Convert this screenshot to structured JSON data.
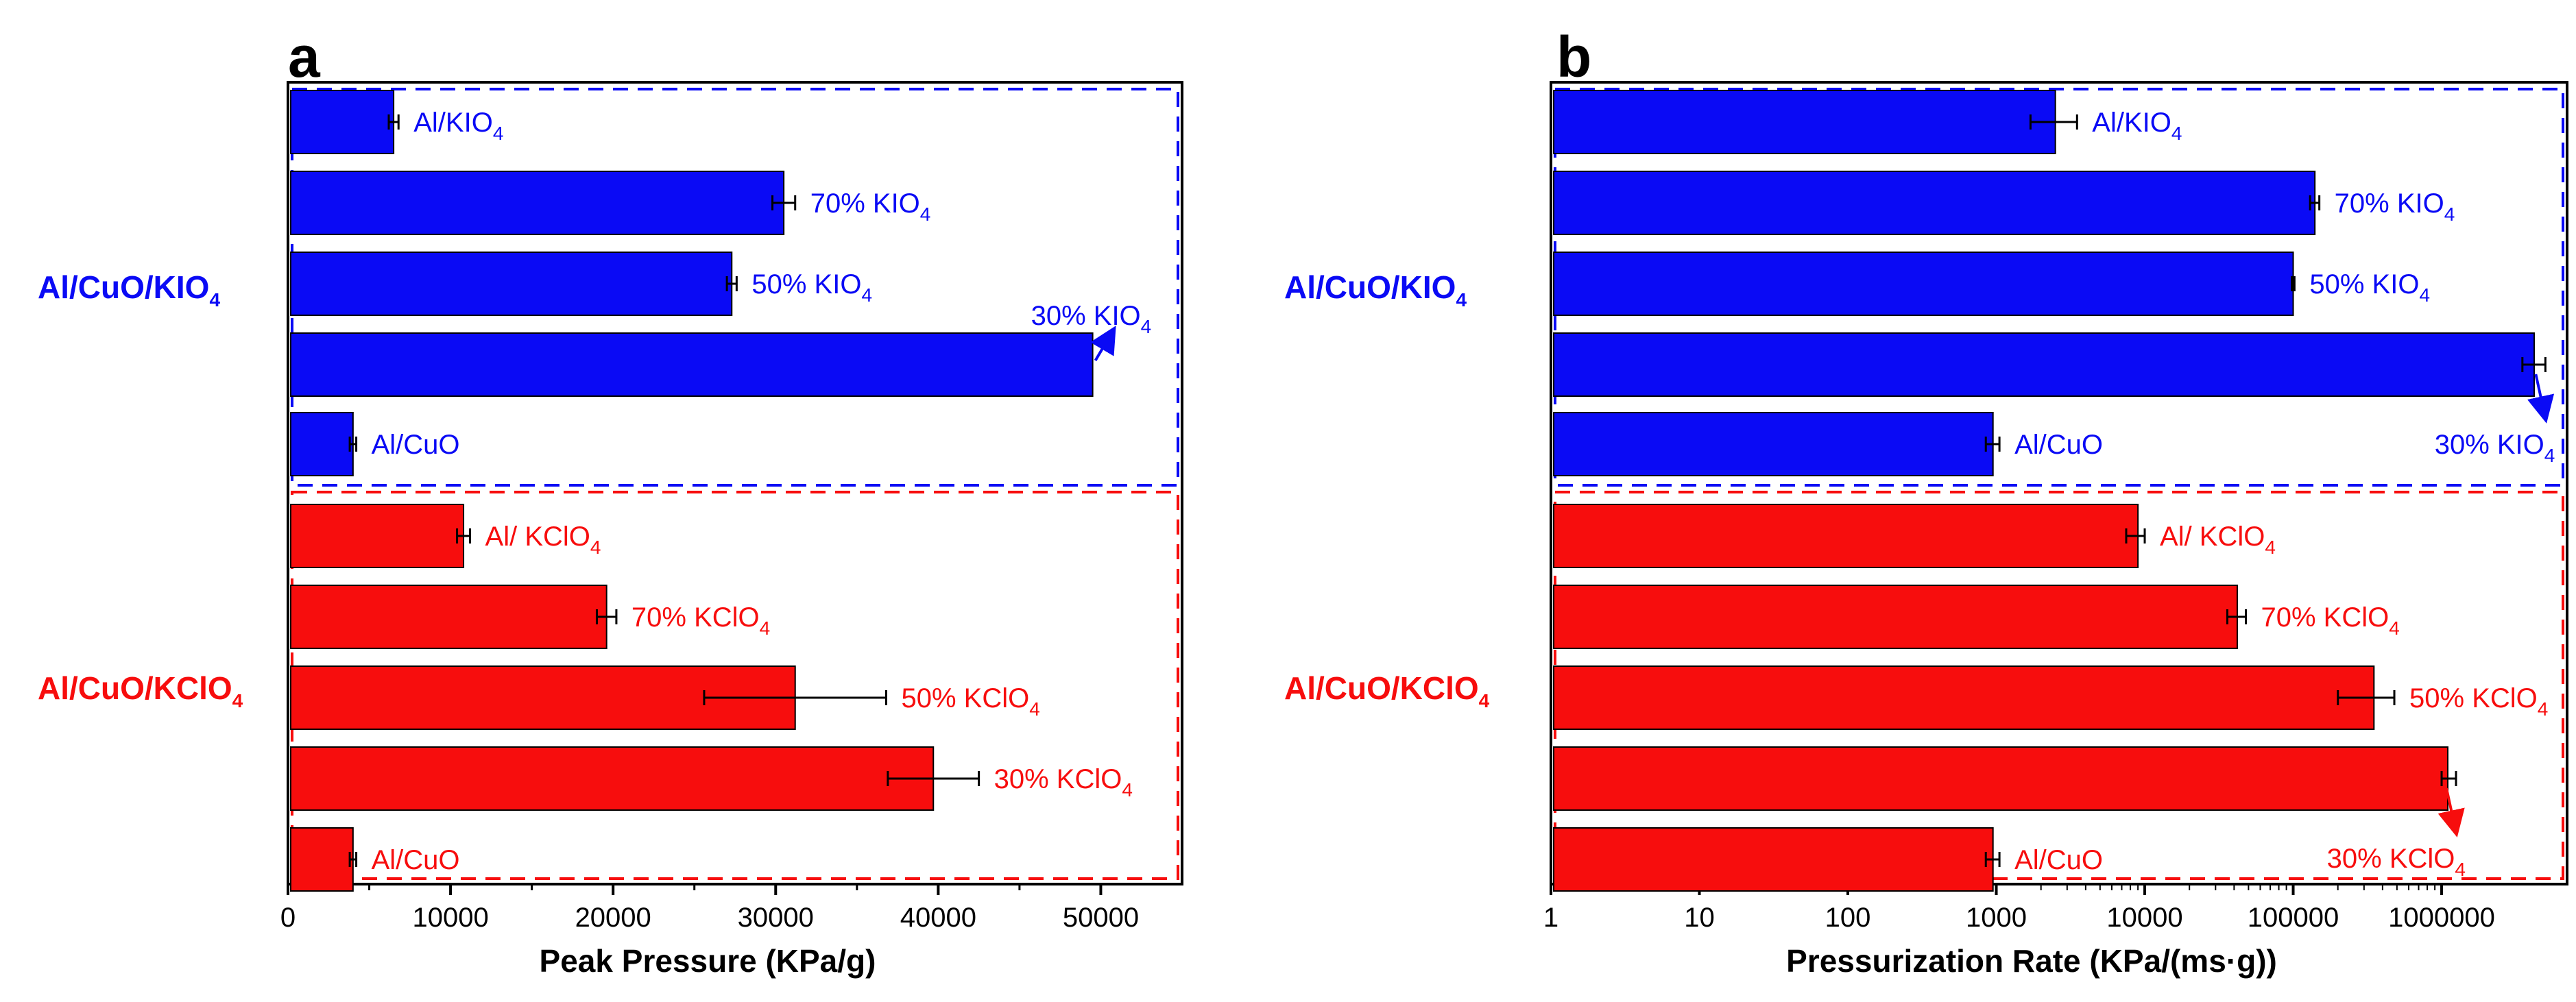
{
  "colors": {
    "KIO4": "#0a0af5",
    "KClO4": "#f70d0d",
    "text": "#000000"
  },
  "chart_data": [
    {
      "id": "a",
      "type": "bar",
      "orientation": "horizontal",
      "panel_label": "a",
      "xlabel": "Peak Pressure (KPa/g)",
      "xscale": "linear",
      "xlim": [
        0,
        55000
      ],
      "xticks": [
        0,
        10000,
        20000,
        30000,
        40000,
        50000
      ],
      "xtick_labels": [
        "0",
        "10000",
        "20000",
        "30000",
        "40000",
        "50000"
      ],
      "groups": [
        {
          "label": "Al/CuO/KIO",
          "label_sub": "4",
          "color_key": "KIO4"
        },
        {
          "label": "Al/CuO/KClO",
          "label_sub": "4",
          "color_key": "KClO4"
        }
      ],
      "bars": [
        {
          "group": 0,
          "label": "Al/KIO",
          "sub": "4",
          "value": 6500,
          "err": 300
        },
        {
          "group": 0,
          "label": "70% KIO",
          "sub": "4",
          "value": 30500,
          "err": 700
        },
        {
          "group": 0,
          "label": "50% KIO",
          "sub": "4",
          "value": 27300,
          "err": 300
        },
        {
          "group": 0,
          "label": "30% KIO",
          "sub": "4",
          "value": 49500,
          "err": 0,
          "arrow": true
        },
        {
          "group": 0,
          "label": "Al/CuO",
          "sub": "",
          "value": 4000,
          "err": 200
        },
        {
          "group": 1,
          "label": "Al/ KClO",
          "sub": "4",
          "value": 10800,
          "err": 400
        },
        {
          "group": 1,
          "label": "70% KClO",
          "sub": "4",
          "value": 19600,
          "err": 600
        },
        {
          "group": 1,
          "label": "50% KClO",
          "sub": "4",
          "value": 31200,
          "err": 5600
        },
        {
          "group": 1,
          "label": "30% KClO",
          "sub": "4",
          "value": 39700,
          "err": 2800
        },
        {
          "group": 1,
          "label": "Al/CuO",
          "sub": "",
          "value": 4000,
          "err": 200
        }
      ]
    },
    {
      "id": "b",
      "type": "bar",
      "orientation": "horizontal",
      "panel_label": "b",
      "xlabel": "Pressurization Rate (KPa/(ms·g))",
      "xscale": "log",
      "xlim": [
        1,
        7000000
      ],
      "xticks": [
        1,
        10,
        100,
        1000,
        10000,
        100000,
        1000000
      ],
      "xtick_labels": [
        "1",
        "10",
        "100",
        "1000",
        "10000",
        "100000",
        "1000000"
      ],
      "groups": [
        {
          "label": "Al/CuO/KIO",
          "label_sub": "4",
          "color_key": "KIO4"
        },
        {
          "label": "Al/CuO/KClO",
          "label_sub": "4",
          "color_key": "KClO4"
        }
      ],
      "bars": [
        {
          "group": 0,
          "label": "Al/KIO",
          "sub": "4",
          "value": 2500,
          "err_low": 1700,
          "err_high": 3500
        },
        {
          "group": 0,
          "label": "70% KIO",
          "sub": "4",
          "value": 140000,
          "err_low": 130000,
          "err_high": 150000
        },
        {
          "group": 0,
          "label": "50% KIO",
          "sub": "4",
          "value": 100000,
          "err_low": 98000,
          "err_high": 102000
        },
        {
          "group": 0,
          "label": "30% KIO",
          "sub": "4",
          "value": 4200000,
          "err_low": 3500000,
          "err_high": 5000000,
          "arrow": true
        },
        {
          "group": 0,
          "label": "Al/CuO",
          "sub": "",
          "value": 950,
          "err_low": 850,
          "err_high": 1050
        },
        {
          "group": 1,
          "label": "Al/ KClO",
          "sub": "4",
          "value": 9000,
          "err_low": 7500,
          "err_high": 10000
        },
        {
          "group": 1,
          "label": "70% KClO",
          "sub": "4",
          "value": 42000,
          "err_low": 36000,
          "err_high": 48000
        },
        {
          "group": 1,
          "label": "50% KClO",
          "sub": "4",
          "value": 350000,
          "err_low": 200000,
          "err_high": 480000
        },
        {
          "group": 1,
          "label": "30% KClO",
          "sub": "4",
          "value": 1100000,
          "err_low": 1000000,
          "err_high": 1250000,
          "arrow": true
        },
        {
          "group": 1,
          "label": "Al/CuO",
          "sub": "",
          "value": 950,
          "err_low": 850,
          "err_high": 1050
        }
      ]
    }
  ]
}
